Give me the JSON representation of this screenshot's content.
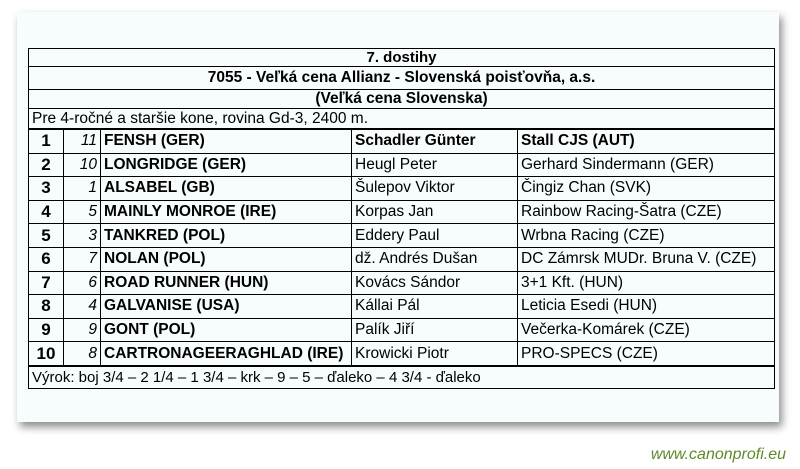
{
  "race": {
    "title": "7. dostihy",
    "name": "7055 - Veľká cena  Allianz - Slovenská poisťovňa, a.s.",
    "subtitle": "(Veľká cena Slovenska)",
    "conditions": "Pre 4-ročné a staršie kone, rovina Gd-3, 2400 m."
  },
  "results": [
    {
      "pos": "1",
      "num": "11",
      "horse": "FENSH (GER)",
      "jockey": "Schadler Günter",
      "owner": "Stall CJS (AUT)"
    },
    {
      "pos": "2",
      "num": "10",
      "horse": "LONGRIDGE (GER)",
      "jockey": "Heugl Peter",
      "owner": "Gerhard Sindermann (GER)"
    },
    {
      "pos": "3",
      "num": "1",
      "horse": "ALSABEL (GB)",
      "jockey": "Šulepov Viktor",
      "owner": "Čingiz Chan (SVK)"
    },
    {
      "pos": "4",
      "num": "5",
      "horse": "MAINLY MONROE (IRE)",
      "jockey": "Korpas Jan",
      "owner": "Rainbow Racing-Šatra (CZE)"
    },
    {
      "pos": "5",
      "num": "3",
      "horse": "TANKRED (POL)",
      "jockey": "Eddery Paul",
      "owner": "Wrbna Racing (CZE)"
    },
    {
      "pos": "6",
      "num": "7",
      "horse": "NOLAN (POL)",
      "jockey": "dž. Andrés Dušan",
      "owner": "DC Zámrsk MUDr. Bruna V. (CZE)"
    },
    {
      "pos": "7",
      "num": "6",
      "horse": "ROAD RUNNER (HUN)",
      "jockey": "Kovács Sándor",
      "owner": "3+1 Kft. (HUN)"
    },
    {
      "pos": "8",
      "num": "4",
      "horse": "GALVANISE (USA)",
      "jockey": "Kállai Pál",
      "owner": "Leticia Esedi (HUN)"
    },
    {
      "pos": "9",
      "num": "9",
      "horse": "GONT (POL)",
      "jockey": "Palík Jiří",
      "owner": "Večerka-Komárek (CZE)"
    },
    {
      "pos": "10",
      "num": "8",
      "horse": "CARTRONAGEERAGHLAD (IRE)",
      "jockey": "Krowicki Piotr",
      "owner": "PRO-SPECS (CZE)"
    }
  ],
  "verdict": "Výrok: boj 3/4 – 2 1/4 – 1 3/4 – krk – 9 – 5 – ďaleko – 4 3/4 - ďaleko",
  "watermark": "www.canonprofi.eu"
}
